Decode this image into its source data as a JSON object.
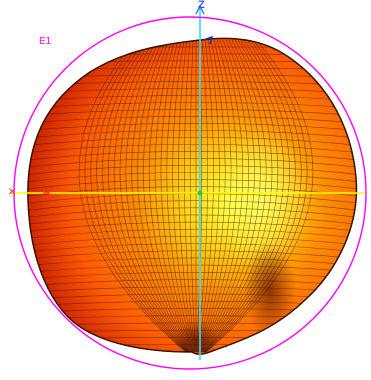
{
  "plot": {
    "plane_label": "E1",
    "z_axis_label": "Z",
    "x_axis_marker": "×"
  },
  "colors": {
    "circle": "#ff00ff",
    "z_axis": "#33ddff",
    "x_axis": "#ffff00",
    "x_axis_marker": "#ff3030",
    "z_axis_label": "#3355ff",
    "surface_dark": "#cc2200",
    "surface_mid": "#ff6a00",
    "surface_bright": "#ffff33",
    "mesh": "#1a0a00"
  }
}
